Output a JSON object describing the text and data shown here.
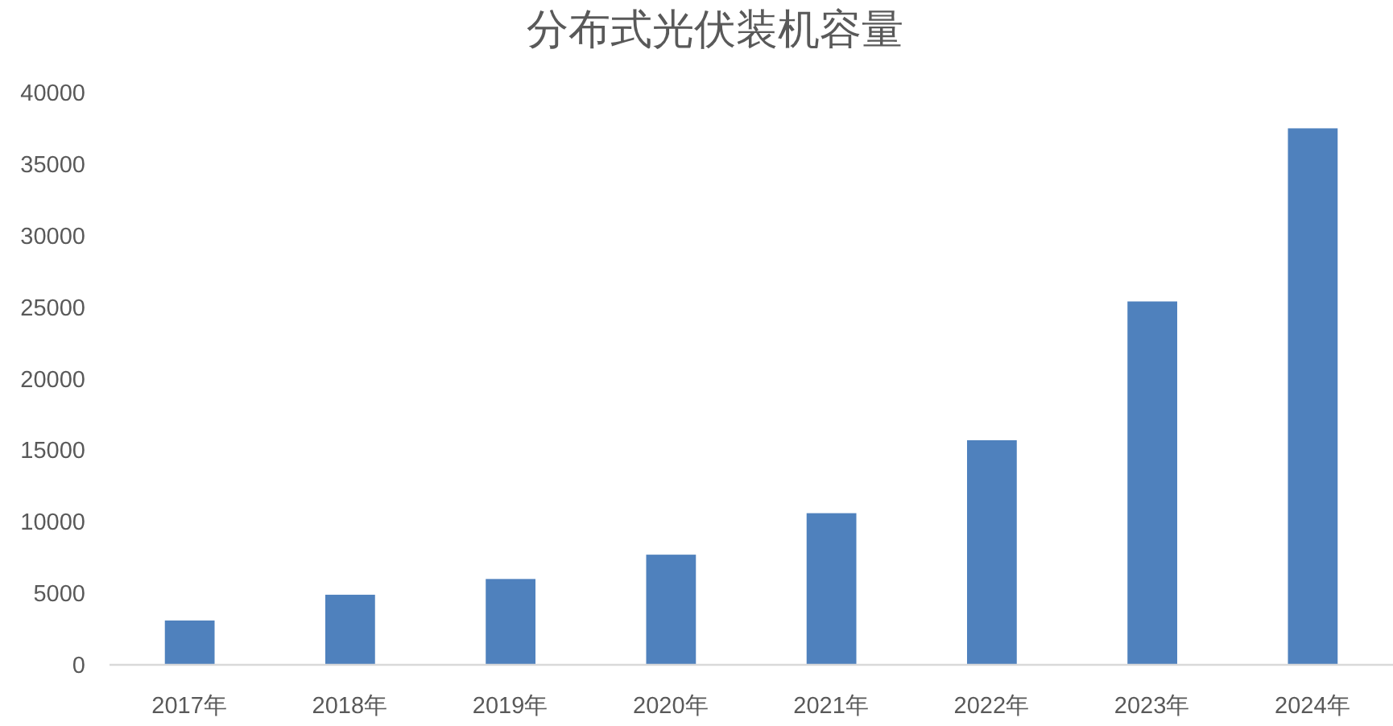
{
  "chart_data": {
    "type": "bar",
    "title": "分布式光伏装机容量",
    "categories": [
      "2017年",
      "2018年",
      "2019年",
      "2020年",
      "2021年",
      "2022年",
      "2023年",
      "2024年"
    ],
    "values": [
      3100,
      4900,
      6000,
      7700,
      10600,
      15700,
      25400,
      37500
    ],
    "color": "#4f81bd",
    "ylim": [
      0,
      40000
    ],
    "yticks": [
      0,
      5000,
      10000,
      15000,
      20000,
      25000,
      30000,
      35000,
      40000
    ]
  }
}
